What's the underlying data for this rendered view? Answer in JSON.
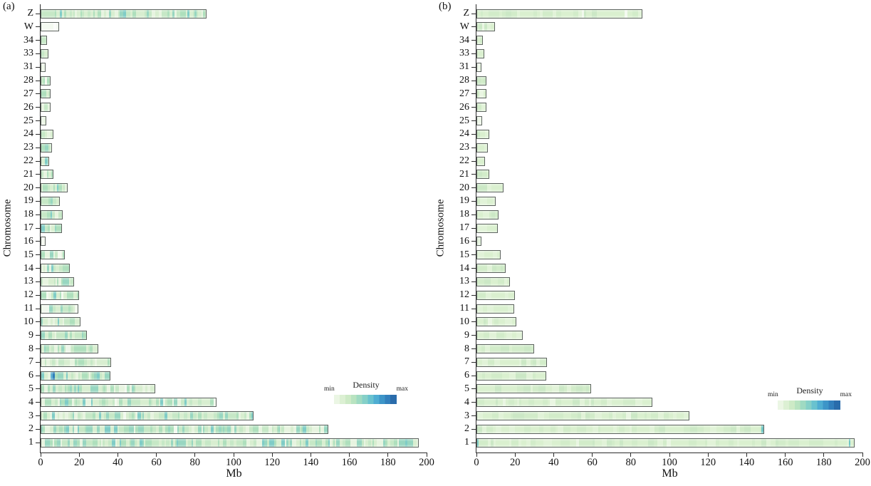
{
  "figure": {
    "panels": [
      {
        "tag": "(a)",
        "xlabel": "Mb",
        "ylabel": "Chromosome",
        "x_max": 200,
        "x_ticks": [
          0,
          20,
          40,
          60,
          80,
          100,
          120,
          140,
          160,
          180,
          200
        ],
        "legend": {
          "title": "Density",
          "min_label": "min",
          "max_label": "max"
        },
        "texture": "varied",
        "chromosomes": [
          {
            "name": "Z",
            "length_mb": 86
          },
          {
            "name": "W",
            "length_mb": 9.5,
            "fill": "white"
          },
          {
            "name": "34",
            "length_mb": 3.5
          },
          {
            "name": "33",
            "length_mb": 4
          },
          {
            "name": "31",
            "length_mb": 2.5,
            "fill": "pale"
          },
          {
            "name": "28",
            "length_mb": 5
          },
          {
            "name": "27",
            "length_mb": 5
          },
          {
            "name": "26",
            "length_mb": 5
          },
          {
            "name": "25",
            "length_mb": 3,
            "fill": "pale"
          },
          {
            "name": "24",
            "length_mb": 6.5
          },
          {
            "name": "23",
            "length_mb": 6
          },
          {
            "name": "22",
            "length_mb": 4.5
          },
          {
            "name": "21",
            "length_mb": 6.5
          },
          {
            "name": "20",
            "length_mb": 14
          },
          {
            "name": "19",
            "length_mb": 10
          },
          {
            "name": "18",
            "length_mb": 11.5
          },
          {
            "name": "17",
            "length_mb": 11
          },
          {
            "name": "16",
            "length_mb": 2.5,
            "fill": "pale"
          },
          {
            "name": "15",
            "length_mb": 12.5
          },
          {
            "name": "14",
            "length_mb": 15
          },
          {
            "name": "13",
            "length_mb": 17.5
          },
          {
            "name": "12",
            "length_mb": 20
          },
          {
            "name": "11",
            "length_mb": 19.5
          },
          {
            "name": "10",
            "length_mb": 20.5
          },
          {
            "name": "9",
            "length_mb": 24
          },
          {
            "name": "8",
            "length_mb": 30
          },
          {
            "name": "7",
            "length_mb": 36.5
          },
          {
            "name": "6",
            "length_mb": 36
          },
          {
            "name": "5",
            "length_mb": 59.5
          },
          {
            "name": "4",
            "length_mb": 91
          },
          {
            "name": "3",
            "length_mb": 110.5
          },
          {
            "name": "2",
            "length_mb": 149
          },
          {
            "name": "1",
            "length_mb": 196
          }
        ],
        "highlights": [
          {
            "chromosome": "6",
            "start_mb": 5.3,
            "width_mb": 0.8,
            "color": "#63b1d3"
          },
          {
            "chromosome": "6",
            "start_mb": 6.1,
            "width_mb": 1.3,
            "color": "#2f7db8"
          },
          {
            "chromosome": "11",
            "start_mb": 0.9,
            "width_mb": 3.4,
            "color": "#f1f8ee"
          },
          {
            "chromosome": "8",
            "start_mb": 12.8,
            "width_mb": 2.8,
            "color": "#edf6e9"
          }
        ]
      },
      {
        "tag": "(b)",
        "xlabel": "Mb",
        "ylabel": "Chromosome",
        "x_max": 200,
        "x_ticks": [
          0,
          20,
          40,
          60,
          80,
          100,
          120,
          140,
          160,
          180,
          200
        ],
        "legend": {
          "title": "Density",
          "min_label": "min",
          "max_label": "max"
        },
        "texture": "uniform",
        "chromosomes": [
          {
            "name": "Z",
            "length_mb": 86
          },
          {
            "name": "W",
            "length_mb": 9.5
          },
          {
            "name": "34",
            "length_mb": 3.5
          },
          {
            "name": "33",
            "length_mb": 4
          },
          {
            "name": "31",
            "length_mb": 2.5,
            "fill": "pale"
          },
          {
            "name": "28",
            "length_mb": 5
          },
          {
            "name": "27",
            "length_mb": 5
          },
          {
            "name": "26",
            "length_mb": 5
          },
          {
            "name": "25",
            "length_mb": 3,
            "fill": "pale"
          },
          {
            "name": "24",
            "length_mb": 6.5
          },
          {
            "name": "23",
            "length_mb": 6
          },
          {
            "name": "22",
            "length_mb": 4.5
          },
          {
            "name": "21",
            "length_mb": 6.5
          },
          {
            "name": "20",
            "length_mb": 14
          },
          {
            "name": "19",
            "length_mb": 10
          },
          {
            "name": "18",
            "length_mb": 11.5
          },
          {
            "name": "17",
            "length_mb": 11
          },
          {
            "name": "16",
            "length_mb": 2.5,
            "fill": "pale"
          },
          {
            "name": "15",
            "length_mb": 12.5
          },
          {
            "name": "14",
            "length_mb": 15
          },
          {
            "name": "13",
            "length_mb": 17.5
          },
          {
            "name": "12",
            "length_mb": 20
          },
          {
            "name": "11",
            "length_mb": 19.5
          },
          {
            "name": "10",
            "length_mb": 20.5
          },
          {
            "name": "9",
            "length_mb": 24
          },
          {
            "name": "8",
            "length_mb": 30
          },
          {
            "name": "7",
            "length_mb": 36.5
          },
          {
            "name": "6",
            "length_mb": 36
          },
          {
            "name": "5",
            "length_mb": 59.5
          },
          {
            "name": "4",
            "length_mb": 91
          },
          {
            "name": "3",
            "length_mb": 110.5
          },
          {
            "name": "2",
            "length_mb": 149
          },
          {
            "name": "1",
            "length_mb": 196
          }
        ],
        "highlights": [
          {
            "chromosome": "Z",
            "start_mb": 54.5,
            "width_mb": 1.1,
            "color": "#f1f9ed"
          },
          {
            "chromosome": "Z",
            "start_mb": 76.8,
            "width_mb": 1.3,
            "color": "#f4faf0"
          },
          {
            "chromosome": "2",
            "start_mb": 147.6,
            "width_mb": 1.0,
            "color": "#6ec5c4"
          },
          {
            "chromosome": "1",
            "start_mb": 0.4,
            "width_mb": 0.8,
            "color": "#7acbc7"
          },
          {
            "chromosome": "1",
            "start_mb": 192.9,
            "width_mb": 1.0,
            "color": "#6ec5c4"
          }
        ]
      }
    ],
    "density_colormap": [
      "#f0f9e8",
      "#ccebc5",
      "#a8ddb5",
      "#7bccc4",
      "#4eb3d3",
      "#2b8cbe",
      "#0868ac"
    ]
  },
  "chart_data": [
    {
      "type": "bar",
      "orientation": "horizontal",
      "title": "(a)",
      "xlabel": "Mb",
      "ylabel": "Chromosome",
      "xlim": [
        0,
        200
      ],
      "x_ticks": [
        0,
        20,
        40,
        60,
        80,
        100,
        120,
        140,
        160,
        180,
        200
      ],
      "legend": {
        "title": "Density",
        "min": "min",
        "max": "max",
        "position": "inside-right",
        "colormap": [
          "#f0f9e8",
          "#ccebc5",
          "#a8ddb5",
          "#7bccc4",
          "#4eb3d3",
          "#2b8cbe",
          "#0868ac"
        ]
      },
      "categories": [
        "Z",
        "W",
        "34",
        "33",
        "31",
        "28",
        "27",
        "26",
        "25",
        "24",
        "23",
        "22",
        "21",
        "20",
        "19",
        "18",
        "17",
        "16",
        "15",
        "14",
        "13",
        "12",
        "11",
        "10",
        "9",
        "8",
        "7",
        "6",
        "5",
        "4",
        "3",
        "2",
        "1"
      ],
      "values": [
        86,
        9.5,
        3.5,
        4,
        2.5,
        5,
        5,
        5,
        3,
        6.5,
        6,
        4.5,
        6.5,
        14,
        10,
        11.5,
        11,
        2.5,
        12.5,
        15,
        17.5,
        20,
        19.5,
        20.5,
        24,
        30,
        36.5,
        36,
        59.5,
        91,
        110.5,
        149,
        196
      ],
      "annotations": [
        "bars shaded by density (min pale green to max blue)",
        "chromosome 6 shows a high-density blue band near 6-7 Mb",
        "chromosome W is near minimum density (white)"
      ]
    },
    {
      "type": "bar",
      "orientation": "horizontal",
      "title": "(b)",
      "xlabel": "Mb",
      "ylabel": "Chromosome",
      "xlim": [
        0,
        200
      ],
      "x_ticks": [
        0,
        20,
        40,
        60,
        80,
        100,
        120,
        140,
        160,
        180,
        200
      ],
      "legend": {
        "title": "Density",
        "min": "min",
        "max": "max",
        "position": "inside-right",
        "colormap": [
          "#f0f9e8",
          "#ccebc5",
          "#a8ddb5",
          "#7bccc4",
          "#4eb3d3",
          "#2b8cbe",
          "#0868ac"
        ]
      },
      "categories": [
        "Z",
        "W",
        "34",
        "33",
        "31",
        "28",
        "27",
        "26",
        "25",
        "24",
        "23",
        "22",
        "21",
        "20",
        "19",
        "18",
        "17",
        "16",
        "15",
        "14",
        "13",
        "12",
        "11",
        "10",
        "9",
        "8",
        "7",
        "6",
        "5",
        "4",
        "3",
        "2",
        "1"
      ],
      "values": [
        86,
        9.5,
        3.5,
        4,
        2.5,
        5,
        5,
        5,
        3,
        6.5,
        6,
        4.5,
        6.5,
        14,
        10,
        11.5,
        11,
        2.5,
        12.5,
        15,
        17.5,
        20,
        19.5,
        20.5,
        24,
        30,
        36.5,
        36,
        59.5,
        91,
        110.5,
        149,
        196
      ],
      "annotations": [
        "bars nearly uniform light-green density",
        "teal bands at end of chromosome 2 (~148 Mb) and on chromosome 1 (~0.5 and ~193 Mb)"
      ]
    }
  ]
}
